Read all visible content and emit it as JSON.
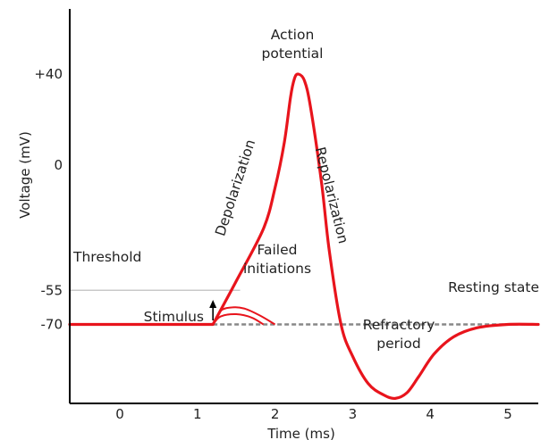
{
  "chart_data": {
    "type": "line",
    "title": "",
    "xlabel": "Time (ms)",
    "ylabel": "Voltage (mV)",
    "xlim": [
      -0.65,
      5.45
    ],
    "ylim": [
      -105,
      60
    ],
    "grid": false,
    "x_ticks": [
      "0",
      "1",
      "2",
      "3",
      "4",
      "5"
    ],
    "x_tick_values": [
      0,
      1,
      2,
      3,
      4,
      5
    ],
    "y_ticks": [
      "+40",
      "0",
      "-55",
      "-70"
    ],
    "y_tick_values": [
      40,
      0,
      -55,
      -70
    ],
    "series": [
      {
        "role": "action-potential",
        "points": [
          [
            -0.65,
            -70
          ],
          [
            1.2,
            -70
          ],
          [
            1.5,
            -51
          ],
          [
            1.85,
            -28
          ],
          [
            2.0,
            -10
          ],
          [
            2.12,
            10
          ],
          [
            2.2,
            30
          ],
          [
            2.25,
            38
          ],
          [
            2.3,
            40
          ],
          [
            2.38,
            37
          ],
          [
            2.46,
            25
          ],
          [
            2.6,
            -8
          ],
          [
            2.7,
            -38
          ],
          [
            2.85,
            -70
          ],
          [
            3.0,
            -84
          ],
          [
            3.2,
            -96
          ],
          [
            3.4,
            -101
          ],
          [
            3.55,
            -102.5
          ],
          [
            3.7,
            -100
          ],
          [
            3.85,
            -93
          ],
          [
            4.05,
            -83
          ],
          [
            4.3,
            -75.5
          ],
          [
            4.6,
            -71.5
          ],
          [
            5.0,
            -70
          ],
          [
            5.45,
            -70
          ]
        ]
      },
      {
        "role": "failed-initiation",
        "points": [
          [
            1.2,
            -70
          ],
          [
            1.3,
            -64
          ],
          [
            1.45,
            -62.5
          ],
          [
            1.6,
            -63
          ],
          [
            1.8,
            -66
          ],
          [
            2.0,
            -70
          ]
        ]
      },
      {
        "role": "failed-initiation",
        "points": [
          [
            1.2,
            -70
          ],
          [
            1.3,
            -66.5
          ],
          [
            1.5,
            -65.5
          ],
          [
            1.7,
            -67
          ],
          [
            1.85,
            -70
          ]
        ]
      }
    ],
    "reference_lines": [
      {
        "label": "Threshold",
        "y": -55,
        "x_range": [
          -0.65,
          1.55
        ]
      },
      {
        "label": "Resting state",
        "y": -70,
        "x_range": [
          1.2,
          5.45
        ],
        "style": "dashed"
      }
    ],
    "annotations": {
      "action_potential": [
        "Action",
        "potential"
      ],
      "depolarization": "Depolarization",
      "repolarization": "Repolarization",
      "failed_initiations": [
        "Failed",
        "initiations"
      ],
      "threshold": "Threshold",
      "resting_state": "Resting state",
      "stimulus": "Stimulus",
      "refractory_period": [
        "Refractory",
        "period"
      ]
    },
    "colors": {
      "curve": "#e8141c",
      "threshold_line": "#c8c8c8",
      "resting_line": "#888888",
      "axis": "#000000",
      "text": "#222222"
    }
  }
}
